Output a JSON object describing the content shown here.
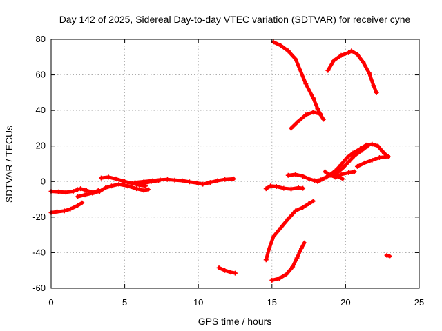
{
  "chart_data": {
    "type": "scatter",
    "title": "Day 142 of 2025, Sidereal Day-to-day VTEC variation (SDTVAR) for receiver cyne",
    "xlabel": "GPS time / hours",
    "ylabel": "SDTVAR / TECUs",
    "xlim": [
      0,
      25
    ],
    "ylim": [
      -60,
      80
    ],
    "xticks": [
      0,
      5,
      10,
      15,
      20,
      25
    ],
    "yticks": [
      -60,
      -40,
      -20,
      0,
      20,
      40,
      60,
      80
    ],
    "xtick_labels": [
      "0",
      "5",
      "10",
      "15",
      "20",
      "25"
    ],
    "ytick_labels": [
      "-60",
      "-40",
      "-20",
      "0",
      "20",
      "40",
      "60",
      "80"
    ],
    "grid": true,
    "color": "#ff0000",
    "series": [
      {
        "points": [
          [
            0.0,
            -5.5
          ],
          [
            0.5,
            -5.8
          ],
          [
            1.0,
            -6.0
          ],
          [
            1.5,
            -5.5
          ],
          [
            1.8,
            -4.5
          ],
          [
            2.0,
            -4.0
          ],
          [
            2.4,
            -5.0
          ],
          [
            2.9,
            -6.2
          ],
          [
            3.3,
            -5.5
          ],
          [
            3.7,
            -3.5
          ],
          [
            4.1,
            -2.5
          ],
          [
            4.6,
            -1.5
          ],
          [
            5.2,
            -2.5
          ],
          [
            5.8,
            -4.0
          ],
          [
            6.3,
            -5.0
          ],
          [
            6.6,
            -4.5
          ]
        ]
      },
      {
        "points": [
          [
            0.0,
            -17.5
          ],
          [
            0.4,
            -17.0
          ],
          [
            0.9,
            -16.5
          ],
          [
            1.3,
            -15.5
          ],
          [
            1.8,
            -13.5
          ],
          [
            2.1,
            -12.0
          ]
        ]
      },
      {
        "points": [
          [
            1.8,
            -8.5
          ],
          [
            2.3,
            -7.5
          ],
          [
            2.8,
            -6.5
          ],
          [
            3.2,
            -5.0
          ]
        ]
      },
      {
        "points": [
          [
            3.4,
            2.0
          ],
          [
            3.9,
            2.5
          ],
          [
            4.4,
            1.5
          ],
          [
            5.0,
            0.0
          ],
          [
            5.5,
            -1.0
          ],
          [
            6.0,
            -2.0
          ],
          [
            6.4,
            -2.5
          ]
        ]
      },
      {
        "points": [
          [
            5.8,
            -1.5
          ],
          [
            6.3,
            -1.0
          ],
          [
            6.8,
            0.0
          ],
          [
            7.3,
            0.5
          ]
        ]
      },
      {
        "points": [
          [
            5.7,
            -0.5
          ],
          [
            6.3,
            0.0
          ],
          [
            6.9,
            0.5
          ],
          [
            7.4,
            1.0
          ],
          [
            7.9,
            1.2
          ],
          [
            8.4,
            0.8
          ],
          [
            8.9,
            0.5
          ],
          [
            9.4,
            -0.2
          ],
          [
            9.9,
            -0.8
          ],
          [
            10.3,
            -1.5
          ],
          [
            10.8,
            -0.5
          ],
          [
            11.3,
            0.5
          ],
          [
            11.8,
            1.2
          ],
          [
            12.4,
            1.5
          ]
        ]
      },
      {
        "points": [
          [
            11.4,
            -48.5
          ],
          [
            11.8,
            -50.0
          ],
          [
            12.2,
            -51.0
          ],
          [
            12.5,
            -51.5
          ]
        ]
      },
      {
        "points": [
          [
            14.6,
            -4.0
          ],
          [
            14.9,
            -2.5
          ],
          [
            15.3,
            -2.8
          ],
          [
            15.8,
            -3.8
          ],
          [
            16.3,
            -4.2
          ],
          [
            16.8,
            -3.5
          ],
          [
            17.1,
            -3.8
          ]
        ]
      },
      {
        "points": [
          [
            14.6,
            -44.0
          ],
          [
            14.8,
            -38.0
          ],
          [
            15.1,
            -31.0
          ],
          [
            15.6,
            -26.0
          ],
          [
            16.1,
            -21.0
          ],
          [
            16.6,
            -16.5
          ],
          [
            17.1,
            -14.5
          ],
          [
            17.5,
            -12.5
          ],
          [
            17.8,
            -11.0
          ]
        ]
      },
      {
        "points": [
          [
            15.0,
            -55.5
          ],
          [
            15.5,
            -54.5
          ],
          [
            16.0,
            -52.0
          ],
          [
            16.4,
            -48.0
          ],
          [
            16.7,
            -43.0
          ],
          [
            17.0,
            -37.5
          ],
          [
            17.2,
            -34.5
          ]
        ]
      },
      {
        "points": [
          [
            15.1,
            78.5
          ],
          [
            15.6,
            76.5
          ],
          [
            16.1,
            73.5
          ],
          [
            16.6,
            69.0
          ],
          [
            16.9,
            63.0
          ],
          [
            17.3,
            55.0
          ],
          [
            17.8,
            47.0
          ],
          [
            18.1,
            41.0
          ],
          [
            18.3,
            37.5
          ],
          [
            18.5,
            35.0
          ]
        ]
      },
      {
        "points": [
          [
            16.3,
            30.0
          ],
          [
            16.8,
            34.0
          ],
          [
            17.3,
            37.5
          ],
          [
            17.8,
            39.0
          ],
          [
            18.3,
            38.0
          ]
        ]
      },
      {
        "points": [
          [
            16.1,
            3.5
          ],
          [
            16.6,
            4.0
          ],
          [
            17.1,
            3.0
          ],
          [
            17.5,
            1.5
          ],
          [
            17.9,
            0.5
          ],
          [
            18.3,
            1.0
          ],
          [
            18.7,
            2.5
          ],
          [
            19.0,
            4.0
          ],
          [
            19.4,
            3.0
          ],
          [
            19.8,
            1.5
          ]
        ]
      },
      {
        "points": [
          [
            18.6,
            5.5
          ],
          [
            19.0,
            3.5
          ],
          [
            19.3,
            2.5
          ],
          [
            19.7,
            4.0
          ],
          [
            20.2,
            5.0
          ],
          [
            20.6,
            5.5
          ]
        ]
      },
      {
        "points": [
          [
            18.1,
            0.0
          ],
          [
            18.5,
            1.5
          ],
          [
            18.9,
            3.5
          ],
          [
            19.3,
            6.0
          ],
          [
            19.7,
            9.5
          ],
          [
            20.1,
            13.5
          ],
          [
            20.5,
            16.0
          ],
          [
            21.0,
            18.5
          ],
          [
            21.4,
            20.5
          ],
          [
            21.8,
            21.0
          ],
          [
            22.2,
            20.0
          ],
          [
            22.5,
            17.0
          ],
          [
            22.8,
            14.5
          ]
        ]
      },
      {
        "points": [
          [
            19.3,
            4.0
          ],
          [
            19.8,
            7.5
          ],
          [
            20.2,
            11.0
          ],
          [
            20.6,
            14.5
          ],
          [
            21.1,
            17.5
          ],
          [
            21.5,
            20.0
          ]
        ]
      },
      {
        "points": [
          [
            20.8,
            8.5
          ],
          [
            21.3,
            10.5
          ],
          [
            21.8,
            12.0
          ],
          [
            22.3,
            13.5
          ],
          [
            22.9,
            14.0
          ]
        ]
      },
      {
        "points": [
          [
            18.8,
            62.5
          ],
          [
            19.2,
            68.0
          ],
          [
            19.7,
            71.0
          ],
          [
            20.2,
            72.5
          ],
          [
            20.4,
            73.5
          ],
          [
            20.8,
            71.5
          ],
          [
            21.2,
            67.0
          ],
          [
            21.6,
            61.0
          ],
          [
            21.9,
            54.0
          ],
          [
            22.1,
            50.0
          ]
        ]
      },
      {
        "points": [
          [
            22.8,
            -41.5
          ],
          [
            23.0,
            -42.0
          ]
        ]
      }
    ]
  }
}
